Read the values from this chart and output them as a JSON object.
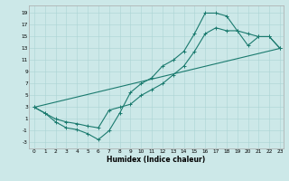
{
  "xlabel": "Humidex (Indice chaleur)",
  "bg_color": "#cce8e8",
  "line_color": "#1a7a6e",
  "line1_x": [
    0,
    1,
    2,
    3,
    4,
    5,
    6,
    7,
    8,
    9,
    10,
    11,
    12,
    13,
    14,
    15,
    16,
    17,
    18,
    19,
    20,
    21,
    22,
    23
  ],
  "line1_y": [
    3,
    2,
    0.5,
    -0.5,
    -0.8,
    -1.5,
    -2.5,
    -1.0,
    2.0,
    5.5,
    7.0,
    8.0,
    10.0,
    11.0,
    12.5,
    15.5,
    19.0,
    19.0,
    18.5,
    16.0,
    13.5,
    15.0,
    15.0,
    13.0
  ],
  "line2_x": [
    0,
    1,
    2,
    3,
    4,
    5,
    6,
    7,
    8,
    9,
    10,
    11,
    12,
    13,
    14,
    15,
    16,
    17,
    18,
    19,
    20,
    21,
    22,
    23
  ],
  "line2_y": [
    3,
    2.0,
    1.0,
    0.5,
    0.2,
    -0.2,
    -0.5,
    2.5,
    3.0,
    3.5,
    5.0,
    6.0,
    7.0,
    8.5,
    10.0,
    12.5,
    15.5,
    16.5,
    16.0,
    16.0,
    15.5,
    15.0,
    15.0,
    13.0
  ],
  "line3_x": [
    0,
    23
  ],
  "line3_y": [
    3,
    13
  ],
  "ylim": [
    -4,
    20
  ],
  "xlim": [
    -0.5,
    23.3
  ],
  "yticks": [
    -3,
    -1,
    1,
    3,
    5,
    7,
    9,
    11,
    13,
    15,
    17,
    19
  ],
  "xticks": [
    0,
    1,
    2,
    3,
    4,
    5,
    6,
    7,
    8,
    9,
    10,
    11,
    12,
    13,
    14,
    15,
    16,
    17,
    18,
    19,
    20,
    21,
    22,
    23
  ],
  "tick_fontsize": 4.2,
  "xlabel_fontsize": 5.5,
  "grid_color": "#aad4d4",
  "spine_color": "#aaaaaa"
}
